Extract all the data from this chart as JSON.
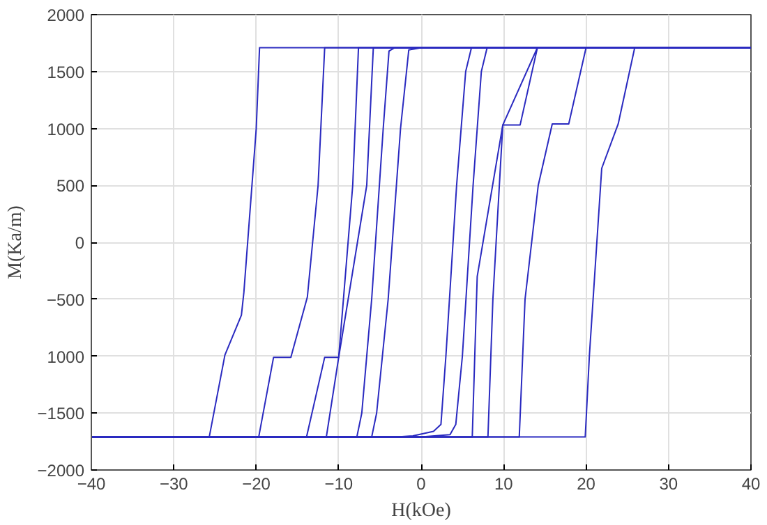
{
  "chart_data": {
    "type": "line",
    "xlabel": "H(kOe)",
    "ylabel": "M(Ka/m)",
    "xlim": [
      -40,
      40
    ],
    "ylim": [
      -2000,
      2000
    ],
    "xticks": [
      -40,
      -30,
      -20,
      -10,
      0,
      10,
      20,
      30,
      40
    ],
    "yticks": [
      -2000,
      -1500,
      {
        "value": -1000,
        "label": "1000"
      },
      -500,
      0,
      500,
      1000,
      1500,
      2000
    ],
    "grid": true,
    "marker": "none",
    "line_style": "solid",
    "series": [
      {
        "color": "#2a2ac0",
        "x": [
          -40,
          -25.7,
          -23.8,
          -21.8,
          -21.5,
          -20.0,
          -19.6,
          40
        ],
        "values": [
          -1710,
          -1710,
          -990,
          -640,
          -440,
          1000,
          1710,
          1710
        ]
      },
      {
        "color": "#2a2ac0",
        "x": [
          -40,
          19.9,
          20.4,
          21.9,
          23.9,
          25.9,
          40
        ],
        "values": [
          -1710,
          -1710,
          -1000,
          650,
          1040,
          1710,
          1710
        ]
      },
      {
        "color": "#2a2ac0",
        "x": [
          -40,
          -19.7,
          -17.9,
          -15.8,
          -13.8,
          -12.5,
          -11.7,
          40
        ],
        "values": [
          -1710,
          -1710,
          -1010,
          -1010,
          -480,
          500,
          1710,
          1710
        ]
      },
      {
        "color": "#2a2ac0",
        "x": [
          -40,
          11.9,
          12.6,
          14.2,
          15.9,
          17.9,
          20.0,
          40
        ],
        "values": [
          -1710,
          -1710,
          -500,
          500,
          1040,
          1040,
          1710,
          1710
        ]
      },
      {
        "color": "#2a2ac0",
        "x": [
          -40,
          -13.9,
          -11.7,
          -10.0,
          -8.3,
          -7.6,
          40
        ],
        "values": [
          -1710,
          -1710,
          -1010,
          -1010,
          500,
          1710,
          1710
        ]
      },
      {
        "color": "#2a2ac0",
        "x": [
          -40,
          8.1,
          8.7,
          9.9,
          12.0,
          14.1,
          40
        ],
        "values": [
          -1710,
          -1710,
          -500,
          1030,
          1030,
          1710,
          1710
        ]
      },
      {
        "color": "#2a2ac0",
        "x": [
          -40,
          -11.5,
          -10.0,
          -6.6,
          -5.8,
          40
        ],
        "values": [
          -1710,
          -1710,
          -1010,
          500,
          1710,
          1710
        ]
      },
      {
        "color": "#2a2ac0",
        "x": [
          -40,
          6.2,
          6.8,
          9.9,
          14.1,
          40
        ],
        "values": [
          -1710,
          -1710,
          -300,
          1030,
          1710,
          1710
        ]
      },
      {
        "color": "#2a2ac0",
        "x": [
          -40,
          -7.8,
          -7.2,
          -6.0,
          -4.6,
          -3.9,
          -3.2,
          40
        ],
        "values": [
          -1710,
          -1710,
          -1500,
          -500,
          1000,
          1680,
          1710,
          1710
        ]
      },
      {
        "color": "#2a2ac0",
        "x": [
          -40,
          0,
          3.5,
          4.2,
          5.0,
          6.3,
          7.3,
          8.0,
          40
        ],
        "values": [
          -1710,
          -1710,
          -1690,
          -1600,
          -1000,
          500,
          1500,
          1710,
          1710
        ]
      },
      {
        "color": "#2a2ac0",
        "x": [
          -40,
          -6.0,
          -5.4,
          -4.0,
          -2.5,
          -1.5,
          0,
          40
        ],
        "values": [
          -1710,
          -1710,
          -1500,
          -500,
          1000,
          1690,
          1710,
          1710
        ]
      },
      {
        "color": "#2a2ac0",
        "x": [
          -40,
          -3,
          -1,
          1.5,
          2.4,
          3.0,
          4.3,
          5.4,
          6.1,
          40
        ],
        "values": [
          -1710,
          -1710,
          -1700,
          -1660,
          -1600,
          -1000,
          500,
          1500,
          1710,
          1710
        ]
      }
    ]
  }
}
